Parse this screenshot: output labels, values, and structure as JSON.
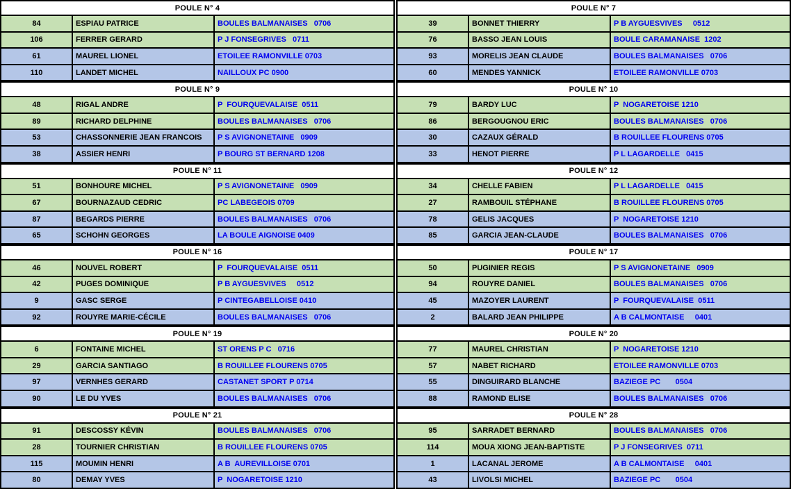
{
  "colors": {
    "green_row": "#c6e0b4",
    "blue_row": "#b4c6e7",
    "header_bg": "#ffffff",
    "border": "#000000",
    "name_text": "#000000",
    "club_text": "#0000f0"
  },
  "pools_left": [
    {
      "title": "POULE N° 4",
      "rows": [
        {
          "num": "84",
          "name": "ESPIAU PATRICE",
          "club": "BOULES BALMANAISES   0706",
          "tone": "green"
        },
        {
          "num": "106",
          "name": "FERRER GERARD",
          "club": "P J FONSEGRIVES   0711",
          "tone": "green"
        },
        {
          "num": "61",
          "name": "MAUREL LIONEL",
          "club": "ETOILEE RAMONVILLE 0703",
          "tone": "blue"
        },
        {
          "num": "110",
          "name": "LANDET MICHEL",
          "club": "NAILLOUX PC 0900",
          "tone": "blue"
        }
      ]
    },
    {
      "title": "POULE N° 9",
      "rows": [
        {
          "num": "48",
          "name": "RIGAL ANDRE",
          "club": "P  FOURQUEVALAISE  0511",
          "tone": "green"
        },
        {
          "num": "89",
          "name": "RICHARD DELPHINE",
          "club": "BOULES BALMANAISES   0706",
          "tone": "green"
        },
        {
          "num": "53",
          "name": "CHASSONNERIE JEAN FRANCOIS",
          "club": "P S AVIGNONETAINE   0909",
          "tone": "blue"
        },
        {
          "num": "38",
          "name": "ASSIER HENRI",
          "club": "P BOURG ST BERNARD 1208",
          "tone": "blue"
        }
      ]
    },
    {
      "title": "POULE N° 11",
      "rows": [
        {
          "num": "51",
          "name": "BONHOURE MICHEL",
          "club": "P S AVIGNONETAINE   0909",
          "tone": "green"
        },
        {
          "num": "67",
          "name": "BOURNAZAUD CEDRIC",
          "club": "PC LABEGEOIS 0709",
          "tone": "green"
        },
        {
          "num": "87",
          "name": "BEGARDS PIERRE",
          "club": "BOULES BALMANAISES   0706",
          "tone": "blue"
        },
        {
          "num": "65",
          "name": "SCHOHN GEORGES",
          "club": "LA BOULE AIGNOISE 0409",
          "tone": "blue"
        }
      ]
    },
    {
      "title": "POULE N° 16",
      "rows": [
        {
          "num": "46",
          "name": "NOUVEL ROBERT",
          "club": "P  FOURQUEVALAISE  0511",
          "tone": "green"
        },
        {
          "num": "42",
          "name": "PUGES DOMINIQUE",
          "club": "P B AYGUESVIVES     0512",
          "tone": "green"
        },
        {
          "num": "9",
          "name": "GASC SERGE",
          "club": "P CINTEGABELLOISE 0410",
          "tone": "blue"
        },
        {
          "num": "92",
          "name": "ROUYRE MARIE-CÉCILE",
          "club": "BOULES BALMANAISES   0706",
          "tone": "blue"
        }
      ]
    },
    {
      "title": "POULE N° 19",
      "rows": [
        {
          "num": "6",
          "name": "FONTAINE MICHEL",
          "club": "ST ORENS P C   0716",
          "tone": "green"
        },
        {
          "num": "29",
          "name": "GARCIA SANTIAGO",
          "club": "B ROUILLEE FLOURENS 0705",
          "tone": "green"
        },
        {
          "num": "97",
          "name": "VERNHES GERARD",
          "club": "CASTANET SPORT P 0714",
          "tone": "blue"
        },
        {
          "num": "90",
          "name": "LE DU YVES",
          "club": "BOULES BALMANAISES   0706",
          "tone": "blue"
        }
      ]
    },
    {
      "title": "POULE N° 21",
      "rows": [
        {
          "num": "91",
          "name": "DESCOSSY KÉVIN",
          "club": "BOULES BALMANAISES   0706",
          "tone": "green"
        },
        {
          "num": "28",
          "name": "TOURNIER CHRISTIAN",
          "club": "B ROUILLEE FLOURENS 0705",
          "tone": "green"
        },
        {
          "num": "115",
          "name": "MOUMIN HENRI",
          "club": "A B  AUREVILLOISE 0701",
          "tone": "blue"
        },
        {
          "num": "80",
          "name": "DEMAY YVES",
          "club": "P  NOGARETOISE 1210",
          "tone": "blue"
        }
      ]
    }
  ],
  "pools_right": [
    {
      "title": "POULE N° 7",
      "rows": [
        {
          "num": "39",
          "name": "BONNET THIERRY",
          "club": "P B AYGUESVIVES     0512",
          "tone": "green"
        },
        {
          "num": "76",
          "name": "BASSO JEAN LOUIS",
          "club": "BOULE CARAMANAISE  1202",
          "tone": "green"
        },
        {
          "num": "93",
          "name": "MORELIS JEAN CLAUDE",
          "club": "BOULES BALMANAISES   0706",
          "tone": "blue"
        },
        {
          "num": "60",
          "name": "MENDES YANNICK",
          "club": "ETOILEE RAMONVILLE 0703",
          "tone": "blue"
        }
      ]
    },
    {
      "title": "POULE N° 10",
      "rows": [
        {
          "num": "79",
          "name": "BARDY LUC",
          "club": "P  NOGARETOISE 1210",
          "tone": "green"
        },
        {
          "num": "86",
          "name": "BERGOUGNOU ERIC",
          "club": "BOULES BALMANAISES   0706",
          "tone": "green"
        },
        {
          "num": "30",
          "name": "CAZAUX GÉRALD",
          "club": "B ROUILLEE FLOURENS 0705",
          "tone": "blue"
        },
        {
          "num": "33",
          "name": "HENOT PIERRE",
          "club": "P L LAGARDELLE   0415",
          "tone": "blue"
        }
      ]
    },
    {
      "title": "POULE N° 12",
      "rows": [
        {
          "num": "34",
          "name": "CHELLE FABIEN",
          "club": "P L LAGARDELLE   0415",
          "tone": "green"
        },
        {
          "num": "27",
          "name": "RAMBOUIL STÉPHANE",
          "club": "B ROUILLEE FLOURENS 0705",
          "tone": "green"
        },
        {
          "num": "78",
          "name": "GELIS JACQUES",
          "club": "P  NOGARETOISE 1210",
          "tone": "blue"
        },
        {
          "num": "85",
          "name": "GARCIA JEAN-CLAUDE",
          "club": "BOULES BALMANAISES   0706",
          "tone": "blue"
        }
      ]
    },
    {
      "title": "POULE N° 17",
      "rows": [
        {
          "num": "50",
          "name": "PUGINIER REGIS",
          "club": "P S AVIGNONETAINE   0909",
          "tone": "green"
        },
        {
          "num": "94",
          "name": "ROUYRE DANIEL",
          "club": "BOULES BALMANAISES   0706",
          "tone": "green"
        },
        {
          "num": "45",
          "name": "MAZOYER LAURENT",
          "club": "P  FOURQUEVALAISE  0511",
          "tone": "blue"
        },
        {
          "num": "2",
          "name": "BALARD JEAN PHILIPPE",
          "club": "A B CALMONTAISE     0401",
          "tone": "blue"
        }
      ]
    },
    {
      "title": "POULE N° 20",
      "rows": [
        {
          "num": "77",
          "name": "MAUREL CHRISTIAN",
          "club": "P  NOGARETOISE 1210",
          "tone": "green"
        },
        {
          "num": "57",
          "name": "NABET RICHARD",
          "club": "ETOILEE RAMONVILLE 0703",
          "tone": "green"
        },
        {
          "num": "55",
          "name": "DINGUIRARD BLANCHE",
          "club": "BAZIEGE PC       0504",
          "tone": "blue"
        },
        {
          "num": "88",
          "name": "RAMOND ELISE",
          "club": "BOULES BALMANAISES   0706",
          "tone": "blue"
        }
      ]
    },
    {
      "title": "POULE N° 28",
      "rows": [
        {
          "num": "95",
          "name": "SARRADET BERNARD",
          "club": "BOULES BALMANAISES   0706",
          "tone": "green"
        },
        {
          "num": "114",
          "name": "MOUA XIONG JEAN-BAPTISTE",
          "club": "P J FONSEGRIVES  0711",
          "tone": "green"
        },
        {
          "num": "1",
          "name": "LACANAL JEROME",
          "club": "A B CALMONTAISE     0401",
          "tone": "blue"
        },
        {
          "num": "43",
          "name": "LIVOLSI MICHEL",
          "club": "BAZIEGE PC       0504",
          "tone": "blue"
        }
      ]
    }
  ]
}
